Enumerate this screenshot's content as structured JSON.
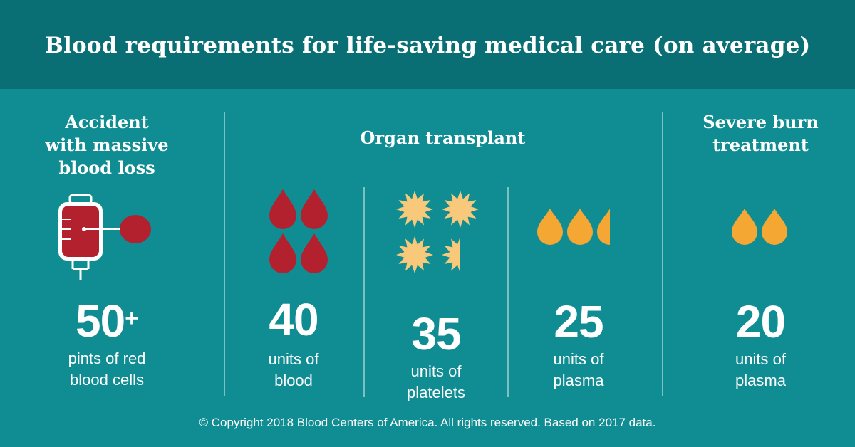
{
  "title": "Blood requirements for life-saving medical care (on average)",
  "colors": {
    "header_bg": "#0a6f75",
    "body_bg": "#0f8d93",
    "blood": "#b3212f",
    "plasma": "#f5a733",
    "platelet": "#f8c97a"
  },
  "accident": {
    "heading": "Accident\nwith massive\nblood loss",
    "number": "50",
    "number_suffix": "+",
    "unit_label": "pints of red\nblood cells",
    "icon": "blood-bag-icon"
  },
  "organ": {
    "heading": "Organ transplant",
    "blood": {
      "number": "40",
      "unit_label": "units of\nblood",
      "icon": "blood-drop-icon",
      "drops": 4
    },
    "platelets": {
      "number": "35",
      "unit_label": "units of\nplatelets",
      "icon": "platelet-icon",
      "count": 3.5
    },
    "plasma": {
      "number": "25",
      "unit_label": "units of\nplasma",
      "icon": "plasma-drop-icon",
      "count": 2.5
    }
  },
  "burn": {
    "heading": "Severe burn\ntreatment",
    "number": "20",
    "unit_label": "units of\nplasma",
    "icon": "plasma-drop-icon",
    "count": 2
  },
  "footer": "© Copyright 2018 Blood Centers of America. All rights reserved. Based on 2017 data."
}
